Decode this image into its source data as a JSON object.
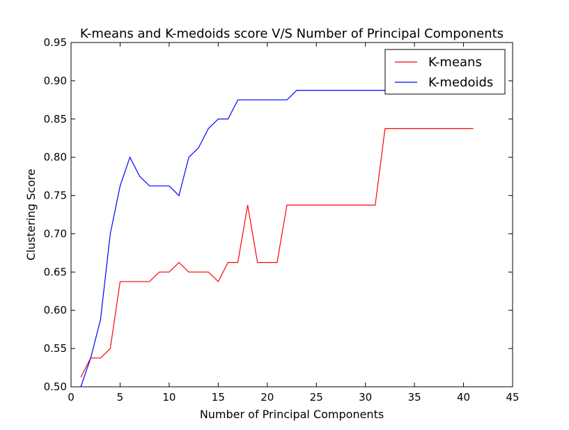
{
  "chart_data": {
    "type": "line",
    "title": "K-means and K-medoids score V/S Number of Principal Components",
    "xlabel": "Number of Principal Components",
    "ylabel": "Clustering Score",
    "xlim": [
      0,
      45
    ],
    "ylim": [
      0.5,
      0.95
    ],
    "xticks": [
      "0",
      "5",
      "10",
      "15",
      "20",
      "25",
      "30",
      "35",
      "40",
      "45"
    ],
    "yticks": [
      "0.50",
      "0.55",
      "0.60",
      "0.65",
      "0.70",
      "0.75",
      "0.80",
      "0.85",
      "0.90",
      "0.95"
    ],
    "grid": false,
    "legend_position": "top-right",
    "x": [
      1,
      2,
      3,
      4,
      5,
      6,
      7,
      8,
      9,
      10,
      11,
      12,
      13,
      14,
      15,
      16,
      17,
      18,
      19,
      20,
      21,
      22,
      23,
      24,
      25,
      26,
      27,
      28,
      29,
      30,
      31,
      32,
      33,
      34,
      35,
      36,
      37,
      38,
      39,
      40,
      41
    ],
    "series": [
      {
        "name": "K-means",
        "color": "#ff0000",
        "values": [
          0.5125,
          0.5375,
          0.5375,
          0.55,
          0.6375,
          0.6375,
          0.6375,
          0.6375,
          0.65,
          0.65,
          0.6625,
          0.65,
          0.65,
          0.65,
          0.6375,
          0.6625,
          0.6625,
          0.7375,
          0.6625,
          0.6625,
          0.6625,
          0.7375,
          0.7375,
          0.7375,
          0.7375,
          0.7375,
          0.7375,
          0.7375,
          0.7375,
          0.7375,
          0.7375,
          0.8375,
          0.8375,
          0.8375,
          0.8375,
          0.8375,
          0.8375,
          0.8375,
          0.8375,
          0.8375,
          0.8375
        ]
      },
      {
        "name": "K-medoids",
        "color": "#0000ff",
        "values": [
          0.5,
          0.5375,
          0.5875,
          0.7,
          0.7625,
          0.8,
          0.775,
          0.7625,
          0.7625,
          0.7625,
          0.75,
          0.8,
          0.8125,
          0.8375,
          0.85,
          0.85,
          0.875,
          0.875,
          0.875,
          0.875,
          0.875,
          0.875,
          0.8875,
          0.8875,
          0.8875,
          0.8875,
          0.8875,
          0.8875,
          0.8875,
          0.8875,
          0.8875,
          0.8875,
          0.8875,
          0.8875,
          0.8875,
          0.8875,
          0.8875,
          0.8875,
          0.8875,
          0.8875,
          0.8875
        ]
      }
    ]
  }
}
